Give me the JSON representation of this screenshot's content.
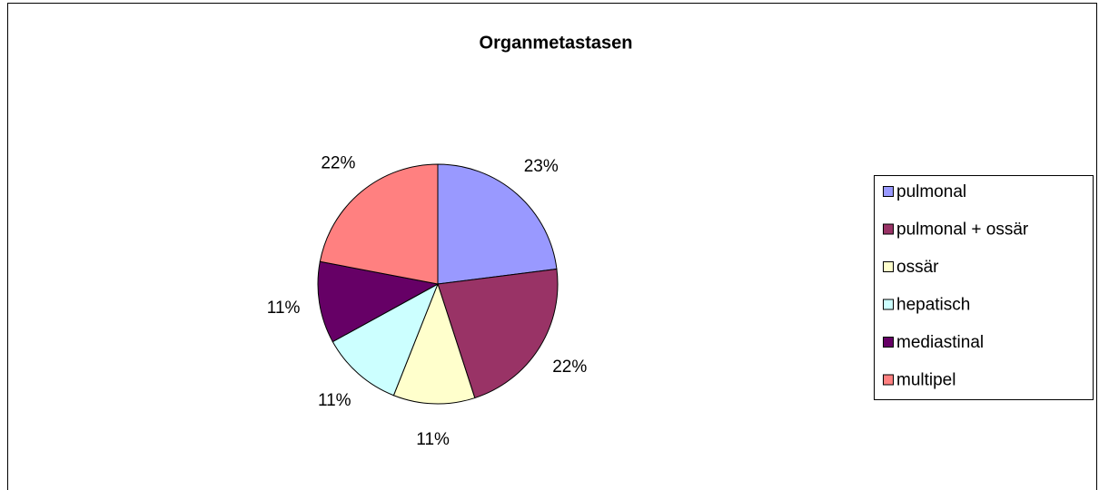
{
  "chart_data": {
    "type": "pie",
    "title": "Organmetastasen",
    "categories": [
      "pulmonal",
      "pulmonal + ossär",
      "ossär",
      "hepatisch",
      "mediastinal",
      "multipel"
    ],
    "values": [
      23,
      22,
      11,
      11,
      11,
      22
    ],
    "value_labels": [
      "23%",
      "22%",
      "11%",
      "11%",
      "11%",
      "22%"
    ],
    "colors": [
      "#9999ff",
      "#993366",
      "#ffffcc",
      "#ccffff",
      "#660066",
      "#ff8080"
    ],
    "legend": "right"
  }
}
